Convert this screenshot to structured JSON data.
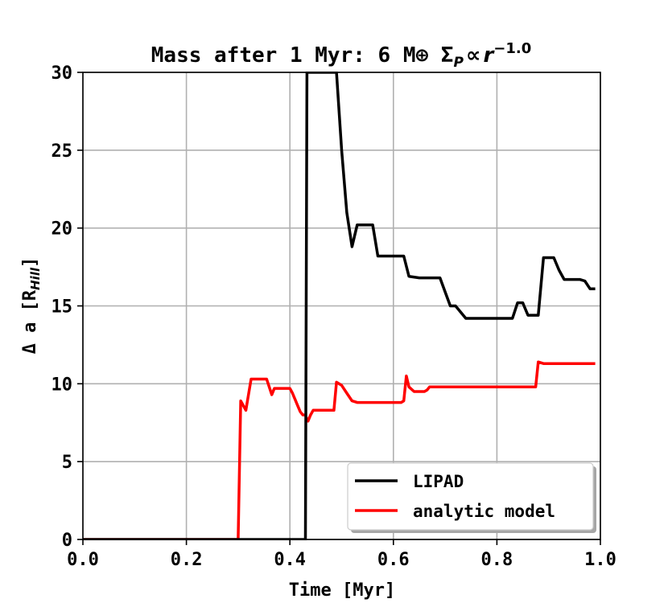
{
  "chart_data": {
    "type": "line",
    "title": "Mass after 1 Myr: 6 M⊕ Σ",
    "title_sub_p": "P",
    "title_prop": "∝",
    "title_r": "r",
    "title_exp": "−1.0",
    "xlabel": "Time [Myr]",
    "ylabel": "Δ a [R",
    "ylabel_sub": "Hill",
    "ylabel_close": "]",
    "xlim": [
      0.0,
      1.0
    ],
    "ylim": [
      0,
      30
    ],
    "xticks": [
      "0.0",
      "0.2",
      "0.4",
      "0.6",
      "0.8",
      "1.0"
    ],
    "yticks": [
      "0",
      "5",
      "10",
      "15",
      "20",
      "25",
      "30"
    ],
    "grid": true,
    "legend_position": "lower-right",
    "series": [
      {
        "name": "LIPAD",
        "color": "#000000",
        "x": [
          0.0,
          0.43,
          0.433,
          0.44,
          0.45,
          0.46,
          0.48,
          0.49,
          0.5,
          0.51,
          0.52,
          0.53,
          0.55,
          0.56,
          0.57,
          0.6,
          0.61,
          0.62,
          0.63,
          0.65,
          0.66,
          0.69,
          0.7,
          0.71,
          0.72,
          0.74,
          0.75,
          0.76,
          0.8,
          0.83,
          0.84,
          0.85,
          0.86,
          0.87,
          0.88,
          0.89,
          0.9,
          0.91,
          0.92,
          0.93,
          0.96,
          0.97,
          0.98,
          0.99
        ],
        "y": [
          0,
          0,
          30,
          30,
          30,
          30,
          30,
          30,
          25,
          21,
          18.8,
          20.2,
          20.2,
          20.2,
          18.2,
          18.2,
          18.2,
          18.2,
          16.9,
          16.8,
          16.8,
          16.8,
          15.9,
          15.0,
          15.0,
          14.2,
          14.2,
          14.2,
          14.2,
          14.2,
          15.2,
          15.2,
          14.4,
          14.4,
          14.4,
          18.1,
          18.1,
          18.1,
          17.3,
          16.7,
          16.7,
          16.6,
          16.1,
          16.1
        ]
      },
      {
        "name": "analytic model",
        "color": "#ff0000",
        "x": [
          0.0,
          0.3,
          0.305,
          0.315,
          0.325,
          0.33,
          0.34,
          0.35,
          0.355,
          0.36,
          0.365,
          0.37,
          0.38,
          0.39,
          0.4,
          0.405,
          0.41,
          0.415,
          0.42,
          0.425,
          0.43,
          0.432,
          0.435,
          0.44,
          0.445,
          0.45,
          0.46,
          0.47,
          0.48,
          0.485,
          0.49,
          0.5,
          0.51,
          0.52,
          0.53,
          0.54,
          0.55,
          0.6,
          0.61,
          0.615,
          0.62,
          0.625,
          0.63,
          0.64,
          0.645,
          0.65,
          0.66,
          0.665,
          0.67,
          0.7,
          0.8,
          0.86,
          0.87,
          0.875,
          0.88,
          0.89,
          0.9,
          0.99
        ],
        "y": [
          0,
          0,
          8.9,
          8.3,
          10.3,
          10.3,
          10.3,
          10.3,
          10.3,
          9.8,
          9.3,
          9.7,
          9.7,
          9.7,
          9.7,
          9.4,
          9.0,
          8.6,
          8.2,
          8.0,
          8.0,
          7.8,
          7.6,
          8.0,
          8.3,
          8.3,
          8.3,
          8.3,
          8.3,
          8.3,
          10.1,
          9.9,
          9.4,
          8.9,
          8.8,
          8.8,
          8.8,
          8.8,
          8.8,
          8.8,
          8.9,
          10.5,
          9.8,
          9.5,
          9.5,
          9.5,
          9.5,
          9.6,
          9.8,
          9.8,
          9.8,
          9.8,
          9.8,
          9.8,
          11.4,
          11.3,
          11.3,
          11.3
        ]
      }
    ]
  }
}
